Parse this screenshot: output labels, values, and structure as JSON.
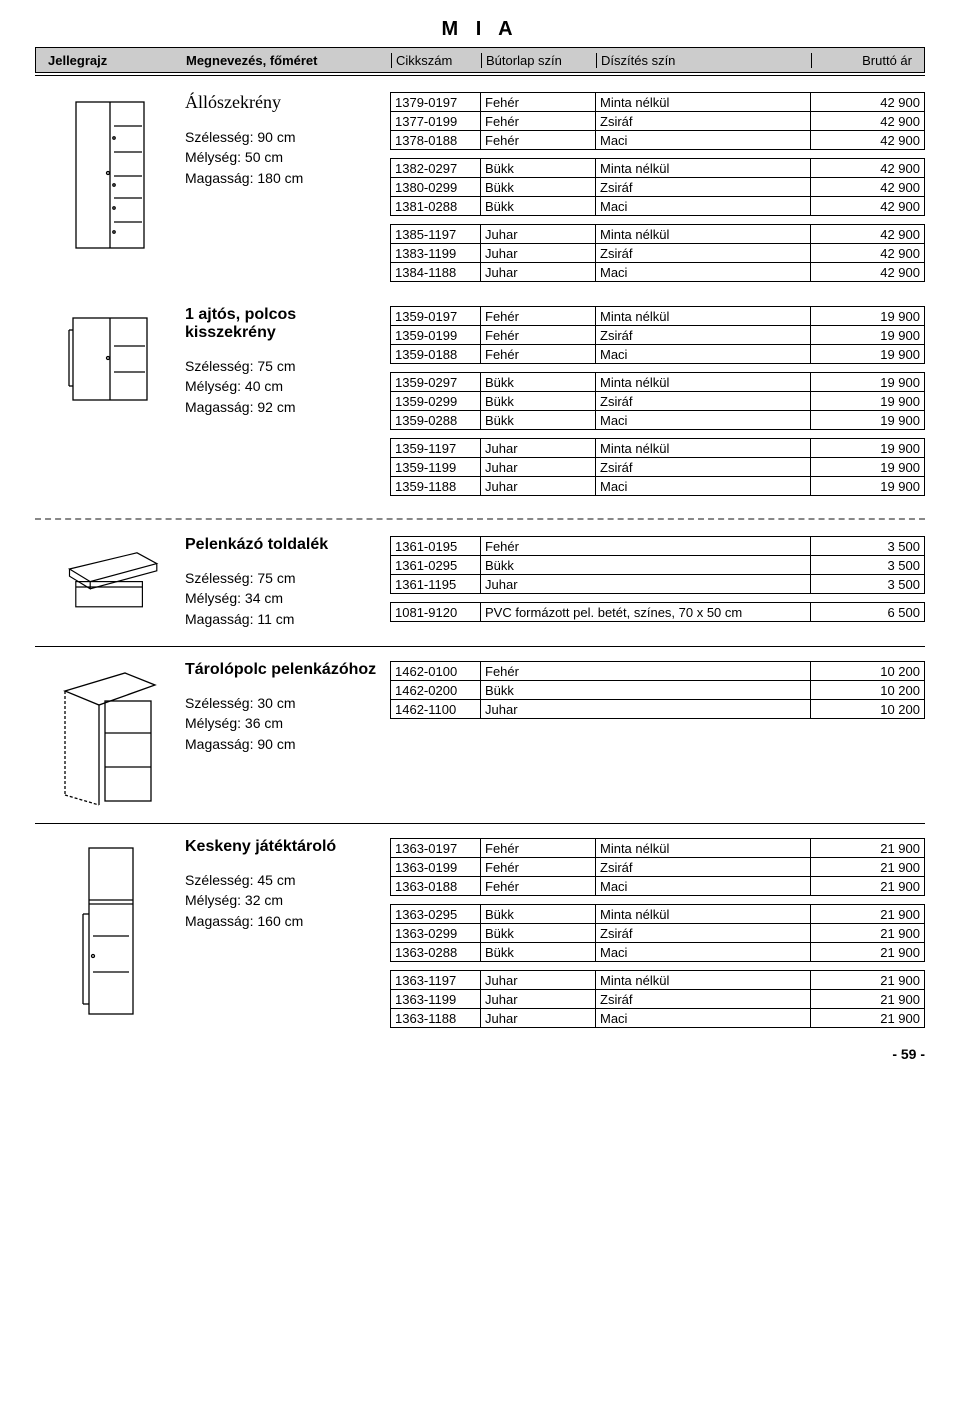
{
  "title": "M I A",
  "header": {
    "c1": "Jellegrajz",
    "c2": "Megnevezés, főméret",
    "c3": "Cikkszám",
    "c4": "Bútorlap szín",
    "c5": "Díszítés szín",
    "c6": "Bruttó ár"
  },
  "footer": "- 59 -",
  "sections": [
    {
      "title": "Állószekrény",
      "title_style": "serif",
      "dims": [
        "Szélesség: 90 cm",
        "Mélység: 50 cm",
        "Magasság: 180 cm"
      ],
      "drawing": "wardrobe",
      "groups": [
        [
          {
            "sku": "1379-0197",
            "mat": "Fehér",
            "dec": "Minta nélkül",
            "pr": "42 900"
          },
          {
            "sku": "1377-0199",
            "mat": "Fehér",
            "dec": "Zsiráf",
            "pr": "42 900"
          },
          {
            "sku": "1378-0188",
            "mat": "Fehér",
            "dec": "Maci",
            "pr": "42 900"
          }
        ],
        [
          {
            "sku": "1382-0297",
            "mat": "Bükk",
            "dec": "Minta nélkül",
            "pr": "42 900"
          },
          {
            "sku": "1380-0299",
            "mat": "Bükk",
            "dec": "Zsiráf",
            "pr": "42 900"
          },
          {
            "sku": "1381-0288",
            "mat": "Bükk",
            "dec": "Maci",
            "pr": "42 900"
          }
        ],
        [
          {
            "sku": "1385-1197",
            "mat": "Juhar",
            "dec": "Minta nélkül",
            "pr": "42 900"
          },
          {
            "sku": "1383-1199",
            "mat": "Juhar",
            "dec": "Zsiráf",
            "pr": "42 900"
          },
          {
            "sku": "1384-1188",
            "mat": "Juhar",
            "dec": "Maci",
            "pr": "42 900"
          }
        ]
      ]
    },
    {
      "title": "1 ajtós, polcos kisszekrény",
      "title_style": "bold",
      "dims": [
        "Szélesség: 75 cm",
        "Mélység: 40 cm",
        "Magasság: 92 cm"
      ],
      "drawing": "small-cabinet",
      "groups": [
        [
          {
            "sku": "1359-0197",
            "mat": "Fehér",
            "dec": "Minta nélkül",
            "pr": "19 900"
          },
          {
            "sku": "1359-0199",
            "mat": "Fehér",
            "dec": "Zsiráf",
            "pr": "19 900"
          },
          {
            "sku": "1359-0188",
            "mat": "Fehér",
            "dec": "Maci",
            "pr": "19 900"
          }
        ],
        [
          {
            "sku": "1359-0297",
            "mat": "Bükk",
            "dec": "Minta nélkül",
            "pr": "19 900"
          },
          {
            "sku": "1359-0299",
            "mat": "Bükk",
            "dec": "Zsiráf",
            "pr": "19 900"
          },
          {
            "sku": "1359-0288",
            "mat": "Bükk",
            "dec": "Maci",
            "pr": "19 900"
          }
        ],
        [
          {
            "sku": "1359-1197",
            "mat": "Juhar",
            "dec": "Minta nélkül",
            "pr": "19 900"
          },
          {
            "sku": "1359-1199",
            "mat": "Juhar",
            "dec": "Zsiráf",
            "pr": "19 900"
          },
          {
            "sku": "1359-1188",
            "mat": "Juhar",
            "dec": "Maci",
            "pr": "19 900"
          }
        ]
      ]
    },
    {
      "title": "Pelenkázó toldalék",
      "title_style": "bold",
      "dims": [
        "Szélesség: 75 cm",
        "Mélység: 34 cm",
        "Magasság: 11 cm"
      ],
      "drawing": "topper",
      "dashed_above": true,
      "wide": true,
      "groups": [
        [
          {
            "sku": "1361-0195",
            "mat": "Fehér",
            "dec": "",
            "pr": "3 500"
          },
          {
            "sku": "1361-0295",
            "mat": "Bükk",
            "dec": "",
            "pr": "3 500"
          },
          {
            "sku": "1361-1195",
            "mat": "Juhar",
            "dec": "",
            "pr": "3 500"
          }
        ],
        [
          {
            "sku": "1081-9120",
            "mat": "PVC formázott pel. betét, színes, 70 x 50 cm",
            "dec": "",
            "pr": "6 500"
          }
        ]
      ]
    },
    {
      "title": "Tárolópolc pelenkázóhoz",
      "title_style": "bold",
      "dims": [
        "Szélesség: 30 cm",
        "Mélység: 36 cm",
        "Magasság: 90 cm"
      ],
      "drawing": "shelf",
      "sep": true,
      "wide": true,
      "groups": [
        [
          {
            "sku": "1462-0100",
            "mat": "Fehér",
            "dec": "",
            "pr": "10 200"
          },
          {
            "sku": "1462-0200",
            "mat": "Bükk",
            "dec": "",
            "pr": "10 200"
          },
          {
            "sku": "1462-1100",
            "mat": "Juhar",
            "dec": "",
            "pr": "10 200"
          }
        ]
      ]
    },
    {
      "title": "Keskeny játéktároló",
      "title_style": "bold",
      "dims": [
        "Szélesség: 45 cm",
        "Mélység: 32 cm",
        "Magasság: 160 cm"
      ],
      "drawing": "tall-narrow",
      "sep": true,
      "groups": [
        [
          {
            "sku": "1363-0197",
            "mat": "Fehér",
            "dec": "Minta nélkül",
            "pr": "21 900"
          },
          {
            "sku": "1363-0199",
            "mat": "Fehér",
            "dec": "Zsiráf",
            "pr": "21 900"
          },
          {
            "sku": "1363-0188",
            "mat": "Fehér",
            "dec": "Maci",
            "pr": "21 900"
          }
        ],
        [
          {
            "sku": "1363-0295",
            "mat": "Bükk",
            "dec": "Minta nélkül",
            "pr": "21 900"
          },
          {
            "sku": "1363-0299",
            "mat": "Bükk",
            "dec": "Zsiráf",
            "pr": "21 900"
          },
          {
            "sku": "1363-0288",
            "mat": "Bükk",
            "dec": "Maci",
            "pr": "21 900"
          }
        ],
        [
          {
            "sku": "1363-1197",
            "mat": "Juhar",
            "dec": "Minta nélkül",
            "pr": "21 900"
          },
          {
            "sku": "1363-1199",
            "mat": "Juhar",
            "dec": "Zsiráf",
            "pr": "21 900"
          },
          {
            "sku": "1363-1188",
            "mat": "Juhar",
            "dec": "Maci",
            "pr": "21 900"
          }
        ]
      ]
    }
  ]
}
